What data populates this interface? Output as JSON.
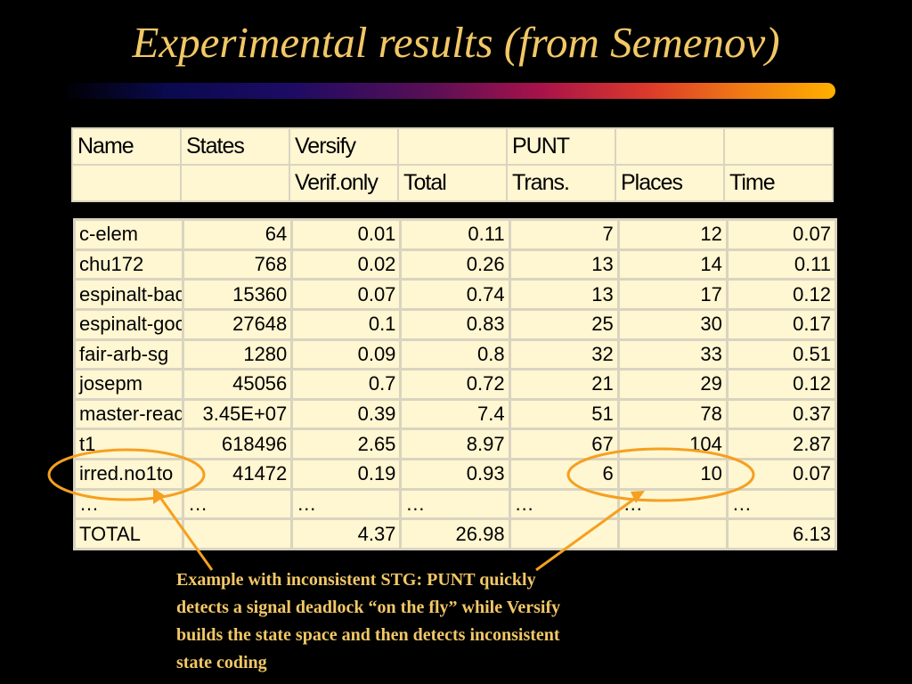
{
  "slide": {
    "title": "Experimental results (from Semenov)"
  },
  "header_table": {
    "rows": [
      [
        "Name",
        "States",
        "Versify",
        "",
        "PUNT",
        "",
        ""
      ],
      [
        "",
        "",
        "Verif.only",
        "Total",
        "Trans.",
        "Places",
        "Time"
      ]
    ]
  },
  "data_table": {
    "rows": [
      [
        "c-elem",
        "64",
        "0.01",
        "0.11",
        "7",
        "12",
        "0.07"
      ],
      [
        "chu172",
        "768",
        "0.02",
        "0.26",
        "13",
        "14",
        "0.11"
      ],
      [
        "espinalt-bad",
        "15360",
        "0.07",
        "0.74",
        "13",
        "17",
        "0.12"
      ],
      [
        "espinalt-good",
        "27648",
        "0.1",
        "0.83",
        "25",
        "30",
        "0.17"
      ],
      [
        "fair-arb-sg",
        "1280",
        "0.09",
        "0.8",
        "32",
        "33",
        "0.51"
      ],
      [
        "josepm",
        "45056",
        "0.7",
        "0.72",
        "21",
        "29",
        "0.12"
      ],
      [
        "master-read",
        "3.45E+07",
        "0.39",
        "7.4",
        "51",
        "78",
        "0.37"
      ],
      [
        "t1",
        "618496",
        "2.65",
        "8.97",
        "67",
        "104",
        "2.87"
      ],
      [
        "irred.no1to",
        "41472",
        "0.19",
        "0.93",
        "6",
        "10",
        "0.07"
      ],
      [
        "…",
        "…",
        "…",
        "…",
        "…",
        "…",
        "…"
      ],
      [
        "TOTAL",
        "",
        "4.37",
        "26.98",
        "",
        "",
        "6.13"
      ]
    ]
  },
  "annotation": {
    "lines": [
      "Example with inconsistent STG: PUNT quickly",
      "detects a signal deadlock “on the fly” while Versify",
      "builds the state space and then detects inconsistent",
      "state coding"
    ]
  },
  "colors": {
    "title": "#f2c866",
    "table_bg": "#fff6d2",
    "highlight": "#f5a020"
  }
}
